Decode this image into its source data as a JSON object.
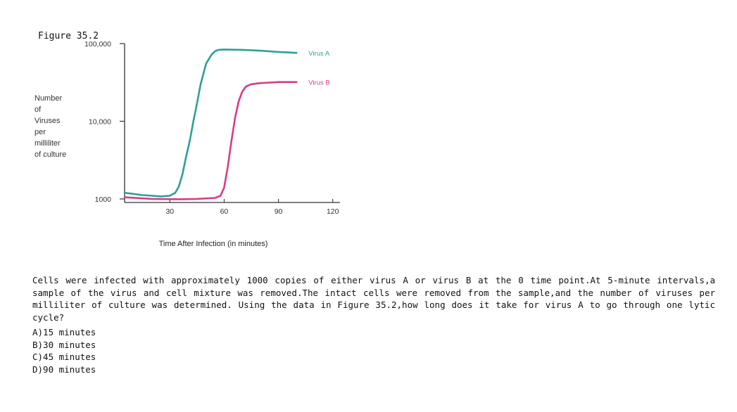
{
  "figure_label": "Figure 35.2",
  "chart_data": {
    "type": "line",
    "title": "",
    "xlabel": "Time After Infection (in minutes)",
    "ylabel_lines": [
      "Number",
      "of",
      "Viruses",
      "per",
      "milliliter",
      "of culture"
    ],
    "y_scale": "log",
    "xlim": [
      5,
      124
    ],
    "ylim": [
      900,
      100000
    ],
    "x_ticks": [
      30,
      60,
      90,
      120
    ],
    "x_tick_labels": [
      "30",
      "60",
      "90",
      "120"
    ],
    "y_ticks": [
      1000,
      10000,
      100000
    ],
    "y_tick_labels": [
      "1000",
      "10,000",
      "100,000"
    ],
    "grid": false,
    "series": [
      {
        "name": "Virus A",
        "color": "#2f9e98",
        "x": [
          5,
          15,
          25,
          30,
          33,
          35,
          37,
          39,
          41,
          43,
          45,
          47,
          50,
          53,
          55,
          57,
          60,
          70,
          80,
          90,
          100
        ],
        "y": [
          1200,
          1120,
          1080,
          1100,
          1200,
          1450,
          2100,
          3500,
          5600,
          10000,
          17000,
          30000,
          55000,
          72000,
          80000,
          83000,
          84000,
          83000,
          81000,
          78000,
          76000
        ]
      },
      {
        "name": "Virus B",
        "color": "#d63c8a",
        "x": [
          5,
          20,
          35,
          45,
          55,
          58,
          60,
          62,
          64,
          66,
          68,
          70,
          72,
          75,
          80,
          90,
          100
        ],
        "y": [
          1050,
          1000,
          990,
          1000,
          1030,
          1100,
          1400,
          2600,
          5500,
          11000,
          18000,
          24000,
          28000,
          30000,
          31000,
          32000,
          32000
        ]
      }
    ]
  },
  "question": {
    "text": "Cells were infected with approximately 1000 copies of either virus A or virus B at the 0 time point.At 5-minute intervals,a sample of the virus and cell mixture was removed.The intact cells were removed from the sample,and the number of viruses per milliliter of culture was determined. Using the data in Figure 35.2,how long does it take for virus A to go through one lytic cycle?",
    "choices": [
      "A)15 minutes",
      "B)30 minutes",
      "C)45 minutes",
      "D)90 minutes"
    ]
  }
}
